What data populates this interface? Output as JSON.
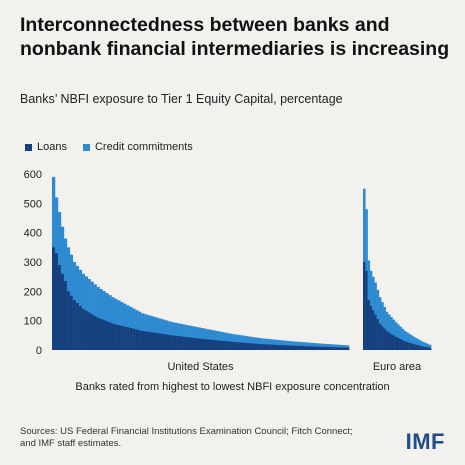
{
  "title": "Interconnectedness between banks and nonbank financial intermediaries is increasing",
  "subtitle": "Banks’ NBFI exposure to Tier 1 Equity Capital, percentage",
  "source": "Sources: US Federal Financial Institutions Examination Council; Fitch Connect; and IMF staff estimates.",
  "logo": "IMF",
  "colors": {
    "loans": "#163f7e",
    "credit": "#2f8bd1",
    "background": "#f2f1ee"
  },
  "chart_data": {
    "type": "bar",
    "stacked": true,
    "xlabel": "Banks rated from highest to lowest NBFI exposure concentration",
    "ylabel": "",
    "ylim": [
      0,
      600
    ],
    "yticks": [
      0,
      100,
      200,
      300,
      400,
      500,
      600
    ],
    "grid": false,
    "legend_position": "top-left",
    "legend": [
      "Loans",
      "Credit commitments"
    ],
    "groups": [
      {
        "name": "United States",
        "bar_count": 100,
        "total_curve": [
          [
            0,
            590
          ],
          [
            1,
            520
          ],
          [
            2,
            470
          ],
          [
            3,
            420
          ],
          [
            4,
            380
          ],
          [
            5,
            350
          ],
          [
            7,
            300
          ],
          [
            10,
            260
          ],
          [
            15,
            215
          ],
          [
            20,
            180
          ],
          [
            30,
            125
          ],
          [
            40,
            95
          ],
          [
            50,
            75
          ],
          [
            60,
            55
          ],
          [
            70,
            40
          ],
          [
            80,
            30
          ],
          [
            90,
            22
          ],
          [
            99,
            16
          ]
        ],
        "loans_curve": [
          [
            0,
            350
          ],
          [
            1,
            330
          ],
          [
            2,
            290
          ],
          [
            3,
            260
          ],
          [
            4,
            235
          ],
          [
            5,
            200
          ],
          [
            7,
            170
          ],
          [
            10,
            140
          ],
          [
            15,
            110
          ],
          [
            20,
            90
          ],
          [
            30,
            65
          ],
          [
            40,
            50
          ],
          [
            50,
            38
          ],
          [
            60,
            28
          ],
          [
            70,
            20
          ],
          [
            80,
            15
          ],
          [
            90,
            11
          ],
          [
            99,
            8
          ]
        ]
      },
      {
        "name": "Euro area",
        "bar_count": 30,
        "total_curve": [
          [
            0,
            550
          ],
          [
            1,
            480
          ],
          [
            2,
            305
          ],
          [
            3,
            270
          ],
          [
            5,
            230
          ],
          [
            7,
            180
          ],
          [
            10,
            130
          ],
          [
            14,
            95
          ],
          [
            18,
            65
          ],
          [
            22,
            45
          ],
          [
            26,
            28
          ],
          [
            29,
            18
          ]
        ],
        "loans_curve": [
          [
            0,
            300
          ],
          [
            1,
            270
          ],
          [
            2,
            170
          ],
          [
            3,
            150
          ],
          [
            5,
            120
          ],
          [
            7,
            90
          ],
          [
            10,
            65
          ],
          [
            14,
            45
          ],
          [
            18,
            30
          ],
          [
            22,
            20
          ],
          [
            26,
            12
          ],
          [
            29,
            8
          ]
        ]
      }
    ]
  }
}
